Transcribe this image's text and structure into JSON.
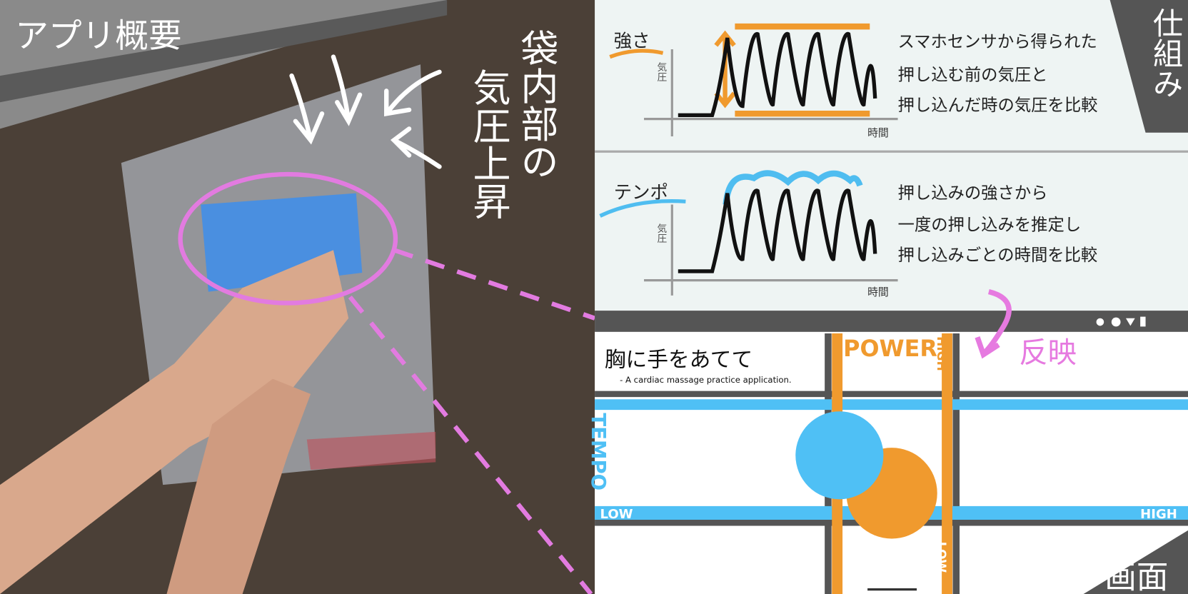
{
  "left": {
    "title": "アプリ概要",
    "caption": [
      "袋内部の",
      "気圧上昇"
    ]
  },
  "mechanism": {
    "label": "仕組み",
    "panels": [
      {
        "title": "強さ",
        "y_axis": "気圧",
        "x_axis": "時間",
        "lines": [
          "スマホセンサから得られた",
          "押し込む前の気圧と",
          "押し込んだ時の気圧を比較"
        ]
      },
      {
        "title": "テンポ",
        "y_axis": "気圧",
        "x_axis": "時間",
        "lines": [
          "押し込みの強さから",
          "一度の押し込みを推定し",
          "押し込みごとの時間を比較"
        ]
      }
    ]
  },
  "arrow_label": "反映",
  "screen": {
    "label": "画面",
    "title": "胸に手をあてて",
    "subtitle": "- A cardiac massage practice application.",
    "power": "POWER",
    "power_high": "HIGH",
    "power_low": "LOW",
    "tempo": "TEMPO",
    "tempo_low": "LOW",
    "tempo_high": "HIGH"
  }
}
